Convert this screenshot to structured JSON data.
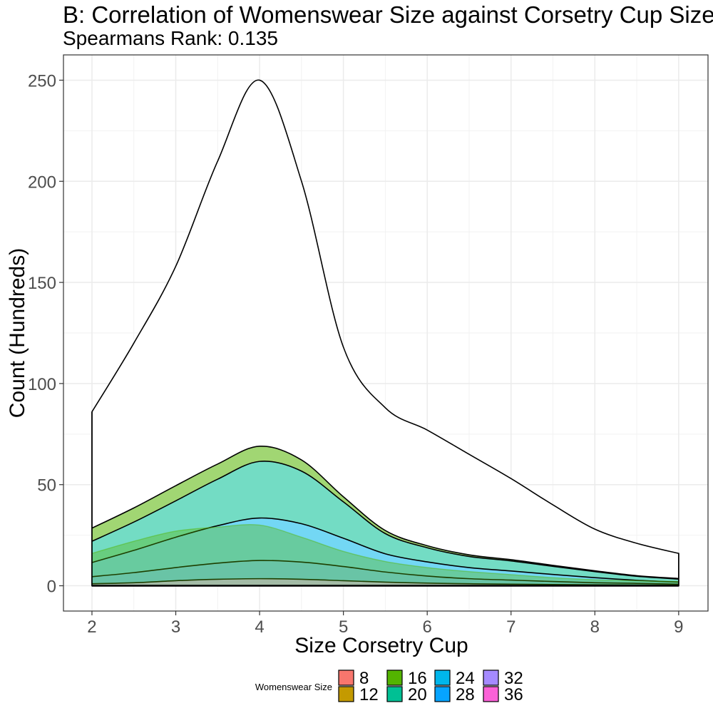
{
  "chart_data": {
    "type": "area",
    "title": "B: Correlation of Womenswear Size against Corsetry Cup Size",
    "subtitle": "Spearmans Rank: 0.135",
    "xlabel": "Size Corsetry Cup",
    "ylabel": "Count (Hundreds)",
    "xlim": [
      1.66,
      9.35
    ],
    "ylim": [
      -12.5,
      262.5
    ],
    "xticks": [
      2,
      3,
      4,
      5,
      6,
      7,
      8,
      9
    ],
    "yticks": [
      0,
      50,
      100,
      150,
      200,
      250
    ],
    "grid": true,
    "legend_position": "bottom",
    "legend_title": "Womenswear Size",
    "x": [
      2,
      2.5,
      3,
      3.5,
      4,
      4.5,
      5,
      5.5,
      6,
      6.5,
      7,
      7.5,
      8,
      8.5,
      9
    ],
    "total": [
      86,
      120,
      158,
      210,
      250,
      200,
      118,
      88,
      77,
      65,
      53,
      40,
      28,
      21,
      16
    ],
    "series": [
      {
        "name": "8",
        "color": "#F8766D",
        "values": [
          0,
          0,
          0,
          0,
          0,
          0,
          0,
          0,
          0,
          0,
          0,
          0,
          0,
          0,
          0
        ]
      },
      {
        "name": "12",
        "color": "#C49A00",
        "values": [
          0,
          0,
          0,
          0,
          0,
          0,
          0,
          0,
          0,
          0,
          0,
          0,
          0,
          0,
          0
        ]
      },
      {
        "name": "16",
        "color": "#53B400",
        "values": [
          6.5,
          7,
          7.5,
          7.5,
          7.5,
          5.5,
          2.5,
          1.5,
          1,
          0.8,
          0.6,
          0.5,
          0.4,
          0.3,
          0.3
        ]
      },
      {
        "name": "20",
        "color": "#00C094",
        "values": [
          10.5,
          14,
          18,
          23,
          28,
          26,
          18,
          10,
          7,
          5.5,
          5,
          4,
          3,
          2,
          1.5
        ]
      },
      {
        "name": "24",
        "color": "#00B6EB",
        "values": [
          7,
          11,
          15,
          18.5,
          21,
          19,
          14,
          9,
          7,
          5.5,
          4.5,
          3.5,
          2.5,
          1.5,
          1
        ]
      },
      {
        "name": "28",
        "color": "#06A4FF",
        "values": [
          3.5,
          5,
          6.5,
          8,
          9,
          8.5,
          7,
          5,
          3.5,
          2.5,
          2,
          1.5,
          1,
          0.8,
          0.5
        ]
      },
      {
        "name": "32",
        "color": "#A58AFF",
        "values": [
          1,
          1.5,
          2.5,
          3.2,
          3.5,
          3.2,
          2.5,
          1.8,
          1.3,
          1,
          0.8,
          0.6,
          0.5,
          0.4,
          0.3
        ]
      },
      {
        "name": "36",
        "color": "#FB61D7",
        "values": [
          0,
          0,
          0,
          0,
          0,
          0,
          0,
          0,
          0,
          0,
          0,
          0,
          0,
          0,
          0
        ]
      }
    ],
    "overlay_series": {
      "color": "#53B400",
      "values": [
        16,
        22,
        27,
        29,
        30,
        24,
        17,
        12,
        9,
        7,
        5.5,
        4,
        3,
        2.5,
        2
      ]
    }
  }
}
